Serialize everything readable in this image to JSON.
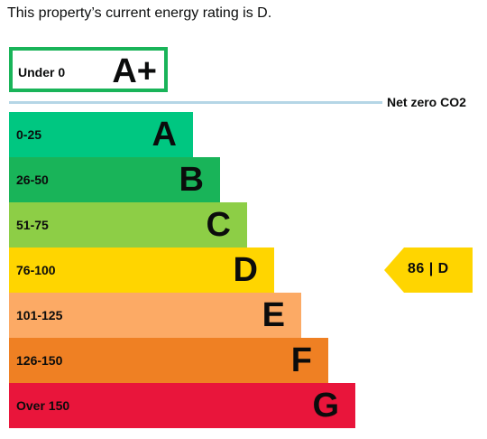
{
  "heading": "This property’s current energy rating is D.",
  "chart_data": {
    "type": "bar",
    "title": "",
    "top_band": {
      "range": "Under 0",
      "letter": "A+",
      "color": "#19b459"
    },
    "net_zero_label": "Net zero CO2",
    "bands": [
      {
        "range": "0-25",
        "letter": "A",
        "color": "#00c781",
        "level": 1
      },
      {
        "range": "26-50",
        "letter": "B",
        "color": "#19b459",
        "level": 2
      },
      {
        "range": "51-75",
        "letter": "C",
        "color": "#8dce46",
        "level": 3
      },
      {
        "range": "76-100",
        "letter": "D",
        "color": "#ffd500",
        "level": 4
      },
      {
        "range": "101-125",
        "letter": "E",
        "color": "#fcaa65",
        "level": 5
      },
      {
        "range": "126-150",
        "letter": "F",
        "color": "#ef8023",
        "level": 6
      },
      {
        "range": "Over 150",
        "letter": "G",
        "color": "#e9153b",
        "level": 7
      }
    ],
    "current": {
      "value": 86,
      "letter": "D",
      "label": "86 | D",
      "color": "#ffd500"
    }
  }
}
